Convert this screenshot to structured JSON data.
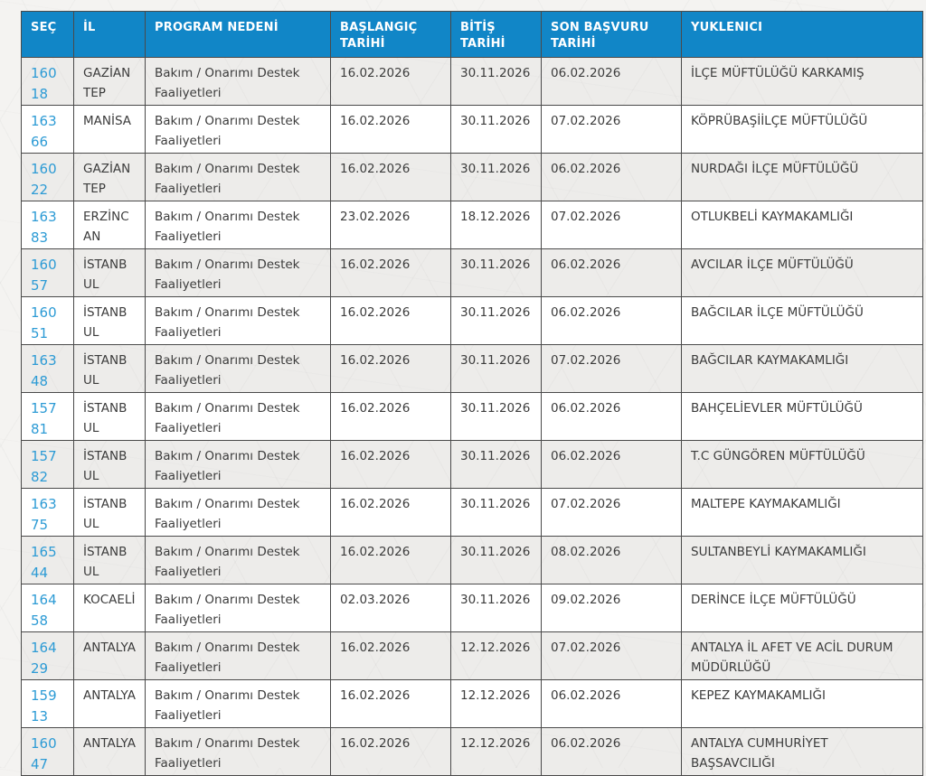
{
  "colors": {
    "header_bg": "#1186c7",
    "link_blue": "#2d9bd5",
    "border": "#4a4a4a",
    "body_text": "#3c3c3c"
  },
  "table": {
    "columns": [
      {
        "key": "sec",
        "label": "SEÇ"
      },
      {
        "key": "il",
        "label": "İL"
      },
      {
        "key": "reason",
        "label": "PROGRAM NEDENİ"
      },
      {
        "key": "start",
        "label": "BAŞLANGIÇ TARİHİ"
      },
      {
        "key": "end",
        "label": "BİTİŞ TARİHİ"
      },
      {
        "key": "deadline",
        "label": "SON BAŞVURU TARİHİ"
      },
      {
        "key": "contractor",
        "label": "YUKLENICI"
      }
    ],
    "rows": [
      {
        "sec": "16018",
        "il": "GAZİANTEP",
        "reason": "Bakım / Onarımı Destek Faaliyetleri",
        "start": "16.02.2026",
        "end": "30.11.2026",
        "deadline": "06.02.2026",
        "contractor": "İLÇE MÜFTÜLÜĞÜ KARKAMIŞ"
      },
      {
        "sec": "16366",
        "il": "MANİSA",
        "reason": "Bakım / Onarımı Destek Faaliyetleri",
        "start": "16.02.2026",
        "end": "30.11.2026",
        "deadline": "07.02.2026",
        "contractor": "KÖPRÜBAŞİİLÇE MÜFTÜLÜĞÜ"
      },
      {
        "sec": "16022",
        "il": "GAZİANTEP",
        "reason": "Bakım / Onarımı Destek Faaliyetleri",
        "start": "16.02.2026",
        "end": "30.11.2026",
        "deadline": "06.02.2026",
        "contractor": "NURDAĞI İLÇE MÜFTÜLÜĞÜ"
      },
      {
        "sec": "16383",
        "il": "ERZİNCAN",
        "reason": "Bakım / Onarımı Destek Faaliyetleri",
        "start": "23.02.2026",
        "end": "18.12.2026",
        "deadline": "07.02.2026",
        "contractor": "OTLUKBELİ KAYMAKAMLIĞI"
      },
      {
        "sec": "16057",
        "il": "İSTANBUL",
        "reason": "Bakım / Onarımı Destek Faaliyetleri",
        "start": "16.02.2026",
        "end": "30.11.2026",
        "deadline": "06.02.2026",
        "contractor": "AVCILAR İLÇE MÜFTÜLÜĞÜ"
      },
      {
        "sec": "16051",
        "il": "İSTANBUL",
        "reason": "Bakım / Onarımı Destek Faaliyetleri",
        "start": "16.02.2026",
        "end": "30.11.2026",
        "deadline": "06.02.2026",
        "contractor": "BAĞCILAR İLÇE MÜFTÜLÜĞÜ"
      },
      {
        "sec": "16348",
        "il": "İSTANBUL",
        "reason": "Bakım / Onarımı Destek Faaliyetleri",
        "start": "16.02.2026",
        "end": "30.11.2026",
        "deadline": "07.02.2026",
        "contractor": "BAĞCILAR KAYMAKAMLIĞI"
      },
      {
        "sec": "15781",
        "il": "İSTANBUL",
        "reason": "Bakım / Onarımı Destek Faaliyetleri",
        "start": "16.02.2026",
        "end": "30.11.2026",
        "deadline": "06.02.2026",
        "contractor": "BAHÇELİEVLER MÜFTÜLÜĞÜ"
      },
      {
        "sec": "15782",
        "il": "İSTANBUL",
        "reason": "Bakım / Onarımı Destek Faaliyetleri",
        "start": "16.02.2026",
        "end": "30.11.2026",
        "deadline": "06.02.2026",
        "contractor": "T.C GÜNGÖREN MÜFTÜLÜĞÜ"
      },
      {
        "sec": "16375",
        "il": "İSTANBUL",
        "reason": "Bakım / Onarımı Destek Faaliyetleri",
        "start": "16.02.2026",
        "end": "30.11.2026",
        "deadline": "07.02.2026",
        "contractor": "MALTEPE KAYMAKAMLIĞI"
      },
      {
        "sec": "16544",
        "il": "İSTANBUL",
        "reason": "Bakım / Onarımı Destek Faaliyetleri",
        "start": "16.02.2026",
        "end": "30.11.2026",
        "deadline": "08.02.2026",
        "contractor": "SULTANBEYLİ KAYMAKAMLIĞI"
      },
      {
        "sec": "16458",
        "il": "KOCAELİ",
        "reason": "Bakım / Onarımı Destek Faaliyetleri",
        "start": "02.03.2026",
        "end": "30.11.2026",
        "deadline": "09.02.2026",
        "contractor": "DERİNCE İLÇE MÜFTÜLÜĞÜ"
      },
      {
        "sec": "16429",
        "il": "ANTALYA",
        "reason": "Bakım / Onarımı Destek Faaliyetleri",
        "start": "16.02.2026",
        "end": "12.12.2026",
        "deadline": "07.02.2026",
        "contractor": "ANTALYA İL AFET VE ACİL DURUM MÜDÜRLÜĞÜ"
      },
      {
        "sec": "15913",
        "il": "ANTALYA",
        "reason": "Bakım / Onarımı Destek Faaliyetleri",
        "start": "16.02.2026",
        "end": "12.12.2026",
        "deadline": "06.02.2026",
        "contractor": "KEPEZ KAYMAKAMLIĞI"
      },
      {
        "sec": "16047",
        "il": "ANTALYA",
        "reason": "Bakım / Onarımı Destek Faaliyetleri",
        "start": "16.02.2026",
        "end": "12.12.2026",
        "deadline": "06.02.2026",
        "contractor": "ANTALYA CUMHURİYET BAŞSAVCILIĞI"
      }
    ]
  }
}
